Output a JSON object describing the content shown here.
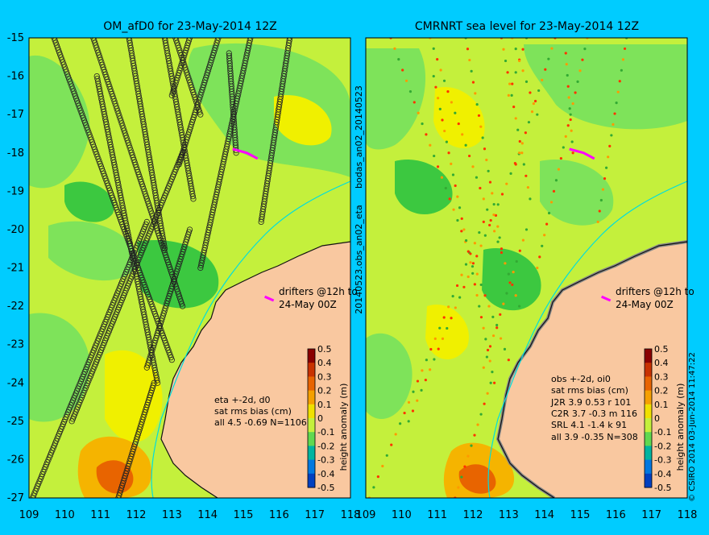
{
  "colors": {
    "background": "#00ccff",
    "land": "#f9c8a0",
    "sea_green": "#7ee35a",
    "sea_yellow_green": "#c4f03c",
    "sea_yellow": "#f0f000",
    "sea_orange": "#f5b400",
    "sea_dark_green": "#3cc840",
    "track_dot_stroke": "#222222",
    "drifter": "#ff00ff",
    "river": "#00dddd"
  },
  "left_panel": {
    "title": "OM_afD0 for 23-May-2014 12Z",
    "annotation_drifters": [
      "drifters @12h to",
      "24-May 00Z"
    ],
    "stats_text": [
      "eta +-2d, d0",
      "sat rms bias (cm)",
      "all 4.5 -0.69 N=1106"
    ],
    "colorbar_label": "height anomaly (m)",
    "side_label": "20140523.obs_an02_eta"
  },
  "right_panel": {
    "title": "CMRNRT sea level  for 23-May-2014 12Z",
    "annotation_drifters": [
      "drifters @12h to",
      "24-May 00Z"
    ],
    "stats_text": [
      "obs +-2d, oi0",
      "sat rms bias (cm)",
      "J2R   3.9 0.53 r 101",
      "C2R   3.7 -0.3 m 116",
      "SRL   4.1 -1.4 k 91",
      "all   3.9 -0.35 N=308"
    ],
    "colorbar_label": "height anomaly (m)",
    "side_label_top": "bodas_an02_20140523",
    "credit": "© CSIRO 2014  03-Jun-2014 11:47:22"
  },
  "map_axes": {
    "lon_range": [
      109,
      118
    ],
    "lat_range": [
      -27,
      -15
    ],
    "lon_ticks": [
      "109",
      "110",
      "111",
      "112",
      "113",
      "114",
      "115",
      "116",
      "117",
      "118"
    ],
    "lat_ticks": [
      "-15",
      "-16",
      "-17",
      "-18",
      "-19",
      "-20",
      "-21",
      "-22",
      "-23",
      "-24",
      "-25",
      "-26",
      "-27"
    ]
  },
  "colorbar": {
    "ticks": [
      "0.5",
      "0.4",
      "0.3",
      "0.2",
      "0.1",
      "0",
      "-0.1",
      "-0.2",
      "-0.3",
      "-0.4",
      "-0.5"
    ],
    "colors": [
      "#8b0000",
      "#c83200",
      "#e86400",
      "#f5a000",
      "#f0e000",
      "#c4f03c",
      "#60d850",
      "#00b4a0",
      "#0078e0",
      "#0040c0",
      "#000080"
    ]
  },
  "altimeter_tracks": [
    [
      [
        109.7,
        -15.0
      ],
      [
        113.0,
        -23.4
      ]
    ],
    [
      [
        110.8,
        -15.0
      ],
      [
        113.3,
        -22.0
      ]
    ],
    [
      [
        111.8,
        -15.0
      ],
      [
        112.8,
        -20.5
      ]
    ],
    [
      [
        112.8,
        -15.0
      ],
      [
        113.6,
        -19.2
      ]
    ],
    [
      [
        113.1,
        -15.0
      ],
      [
        113.8,
        -17.0
      ]
    ],
    [
      [
        113.5,
        -15.0
      ],
      [
        113.0,
        -16.5
      ]
    ],
    [
      [
        114.3,
        -15.0
      ],
      [
        113.2,
        -18.3
      ]
    ],
    [
      [
        115.2,
        -15.0
      ],
      [
        113.8,
        -21.0
      ]
    ],
    [
      [
        116.3,
        -15.0
      ],
      [
        115.5,
        -19.8
      ]
    ],
    [
      [
        114.6,
        -15.4
      ],
      [
        114.8,
        -18.0
      ]
    ],
    [
      [
        109.1,
        -27.0
      ],
      [
        112.3,
        -19.8
      ]
    ],
    [
      [
        110.2,
        -25.0
      ],
      [
        113.3,
        -18.0
      ]
    ],
    [
      [
        111.5,
        -27.0
      ],
      [
        112.5,
        -24.0
      ]
    ],
    [
      [
        112.3,
        -23.6
      ],
      [
        113.5,
        -20.0
      ]
    ],
    [
      [
        110.9,
        -16.0
      ],
      [
        112.6,
        -24.0
      ]
    ]
  ],
  "drifter_track": [
    [
      114.7,
      -17.9
    ],
    [
      114.9,
      -17.95
    ],
    [
      115.1,
      -18.0
    ],
    [
      115.3,
      -18.1
    ],
    [
      115.4,
      -18.15
    ]
  ],
  "drifter_legend": [
    [
      115.6,
      -21.75
    ],
    [
      115.85,
      -21.85
    ]
  ]
}
